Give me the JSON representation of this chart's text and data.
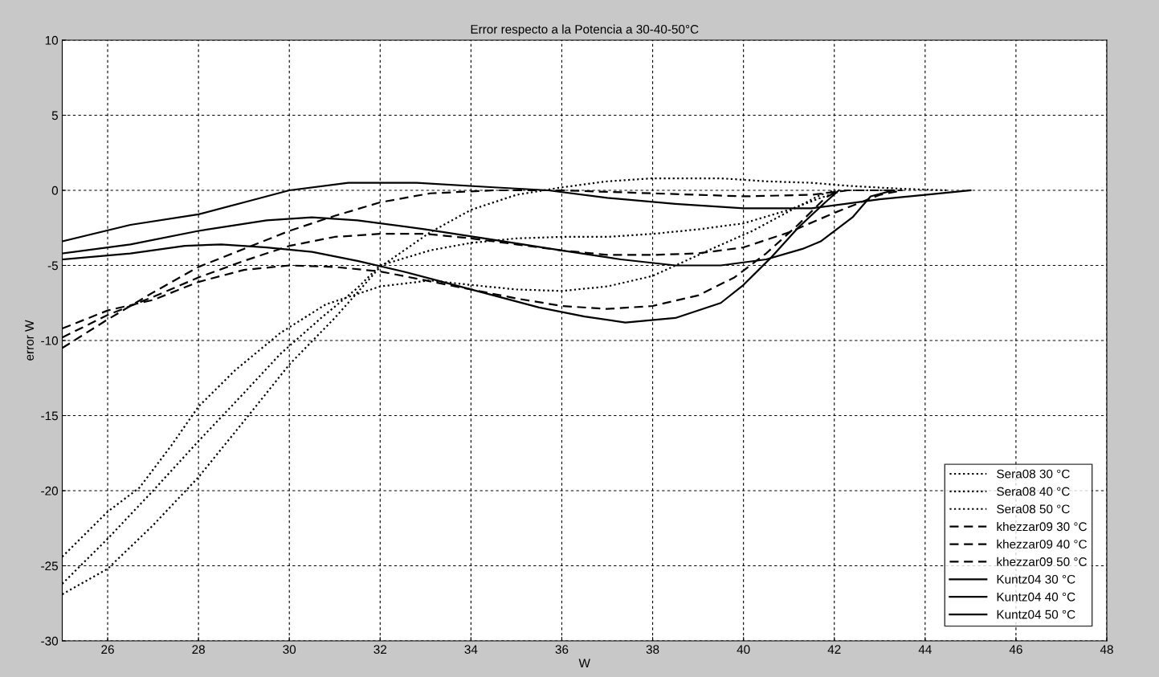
{
  "chart_data": {
    "type": "line",
    "title": "Error respecto a la Potencia a 30-40-50°C",
    "xlabel": "W",
    "ylabel": "error W",
    "xlim": [
      25,
      48
    ],
    "xticks": [
      26,
      28,
      30,
      32,
      34,
      36,
      38,
      40,
      42,
      44,
      46,
      48
    ],
    "ylim": [
      -30,
      10
    ],
    "yticks": [
      -30,
      -25,
      -20,
      -15,
      -10,
      -5,
      0,
      5,
      10
    ],
    "grid": true,
    "legend": "bottom right",
    "series": [
      {
        "name": "Sera08 30 °C",
        "color": "#000000",
        "line_style": "dotted",
        "x": [
          25,
          26,
          27,
          28,
          29.1,
          30,
          31,
          32,
          33.1,
          34,
          35,
          36,
          37,
          38,
          39.5,
          40.5,
          41.5,
          42.3,
          43.5,
          44.5
        ],
        "values": [
          -26.9,
          -25.2,
          -22.3,
          -19.1,
          -15,
          -11.6,
          -8.5,
          -5.1,
          -2.8,
          -1.3,
          -0.3,
          0.2,
          0.6,
          0.8,
          0.8,
          0.6,
          0.5,
          0.3,
          0.1,
          0
        ]
      },
      {
        "name": "Sera08 40 °C",
        "color": "#000000",
        "line_style": "dotted",
        "x": [
          25,
          26,
          27,
          28,
          29,
          29.8,
          30.7,
          31.5,
          32,
          33.1,
          34,
          35,
          36,
          37,
          38,
          39,
          40,
          41,
          41.7,
          42.2,
          43.5
        ],
        "values": [
          -26.2,
          -23.2,
          -20,
          -16.7,
          -13.5,
          -10.9,
          -8.5,
          -6.5,
          -5,
          -4,
          -3.5,
          -3.2,
          -3.1,
          -3.1,
          -2.9,
          -2.6,
          -2.2,
          -1.3,
          -0.5,
          0,
          0
        ]
      },
      {
        "name": "Sera08 50 °C",
        "color": "#000000",
        "line_style": "dotted",
        "x": [
          25,
          26,
          26.7,
          27.4,
          28,
          28.8,
          29.8,
          30.8,
          32,
          33.1,
          34,
          35,
          36,
          37,
          38,
          39.3,
          40.2,
          41,
          41.7,
          42
        ],
        "values": [
          -24.4,
          -21.4,
          -19.8,
          -17,
          -14.4,
          -12,
          -9.5,
          -7.6,
          -6.4,
          -6,
          -6.3,
          -6.6,
          -6.7,
          -6.4,
          -5.7,
          -3.9,
          -2.7,
          -1.4,
          -0.3,
          0
        ]
      },
      {
        "name": "khezzar09 30 °C",
        "color": "#000000",
        "line_style": "dashed",
        "x": [
          25,
          26,
          27,
          28,
          29,
          30,
          31,
          32,
          33.1,
          34.5,
          36,
          38,
          40,
          41.5,
          42.3,
          43.5
        ],
        "values": [
          -10.5,
          -8.6,
          -6.8,
          -5.1,
          -3.9,
          -2.7,
          -1.7,
          -0.8,
          -0.2,
          0,
          0,
          -0.2,
          -0.4,
          -0.3,
          0,
          0
        ]
      },
      {
        "name": "khezzar09 40 °C",
        "color": "#000000",
        "line_style": "dashed",
        "x": [
          25,
          26,
          27,
          28,
          29,
          30,
          31,
          32,
          33,
          34,
          35,
          36,
          37,
          38,
          39,
          40,
          41,
          42,
          43,
          43.5
        ],
        "values": [
          -9.8,
          -8.3,
          -7.1,
          -5.8,
          -4.7,
          -3.7,
          -3.1,
          -2.9,
          -2.9,
          -3.2,
          -3.6,
          -4,
          -4.3,
          -4.3,
          -4.2,
          -3.8,
          -2.8,
          -1.5,
          -0.3,
          0
        ]
      },
      {
        "name": "khezzar09 50 °C",
        "color": "#000000",
        "line_style": "dashed",
        "x": [
          25,
          26,
          27,
          28,
          29,
          30,
          31,
          32,
          33,
          34,
          35,
          36,
          37,
          38,
          39,
          39.8,
          40.5,
          41.2,
          41.8,
          42.1
        ],
        "values": [
          -9.2,
          -8,
          -7.3,
          -6.1,
          -5.3,
          -5,
          -5.1,
          -5.4,
          -6,
          -6.6,
          -7.2,
          -7.7,
          -7.9,
          -7.7,
          -7,
          -5.8,
          -4.2,
          -2.3,
          -0.5,
          0
        ]
      },
      {
        "name": "Kuntz04 30 °C",
        "color": "#000000",
        "line_style": "solid",
        "x": [
          25,
          26.5,
          28,
          29,
          30,
          31.3,
          32.8,
          34.5,
          35.7,
          37,
          38.5,
          40,
          41.5,
          43,
          44,
          45
        ],
        "values": [
          -3.4,
          -2.3,
          -1.6,
          -0.8,
          0,
          0.5,
          0.5,
          0.2,
          0,
          -0.5,
          -0.9,
          -1.2,
          -1.2,
          -0.6,
          -0.3,
          0
        ]
      },
      {
        "name": "Kuntz04 40 °C",
        "color": "#000000",
        "line_style": "solid",
        "x": [
          25,
          26.5,
          28,
          29.5,
          30.5,
          31.5,
          33,
          34.5,
          36,
          37.3,
          38.5,
          39.5,
          40.5,
          41.3,
          41.7,
          42.4,
          42.8,
          43.3
        ],
        "values": [
          -4.2,
          -3.6,
          -2.7,
          -2,
          -1.8,
          -2,
          -2.6,
          -3.3,
          -4,
          -4.6,
          -5,
          -5,
          -4.6,
          -3.9,
          -3.4,
          -1.8,
          -0.4,
          0
        ]
      },
      {
        "name": "Kuntz04 50 °C",
        "color": "#000000",
        "line_style": "solid",
        "x": [
          25,
          26.5,
          27.7,
          28.5,
          29.5,
          30.5,
          31.5,
          32.5,
          33.5,
          34.5,
          35.5,
          36.5,
          37.4,
          38.5,
          39.5,
          40,
          40.6,
          41.2,
          41.8,
          42.1
        ],
        "values": [
          -4.6,
          -4.2,
          -3.7,
          -3.6,
          -3.8,
          -4.1,
          -4.7,
          -5.4,
          -6.2,
          -7,
          -7.8,
          -8.4,
          -8.8,
          -8.5,
          -7.5,
          -6.3,
          -4.5,
          -2.5,
          -0.8,
          0
        ]
      }
    ]
  }
}
